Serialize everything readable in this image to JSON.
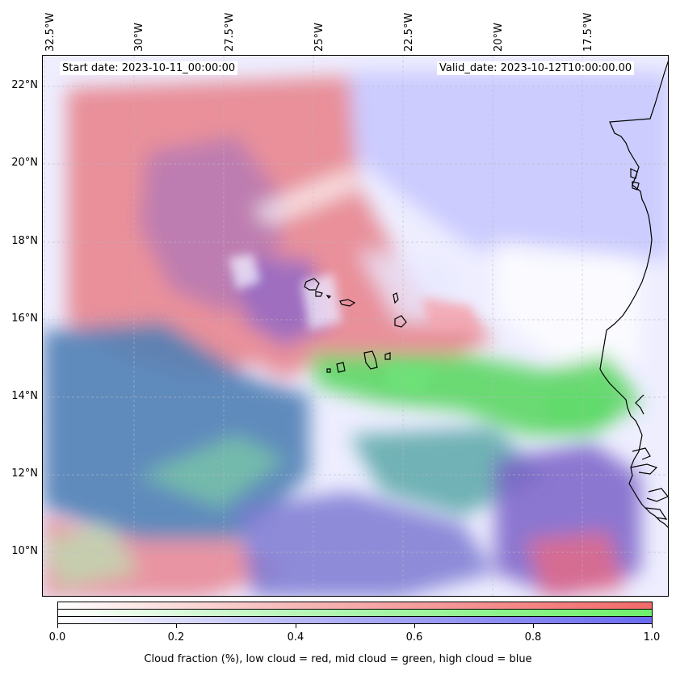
{
  "map": {
    "start_date": "Start date: 2023-10-11_00:00:00",
    "valid_date": "Valid_date: 2023-10-12T10:00:00.00",
    "longitude_labels": [
      "32.5°W",
      "30°W",
      "27.5°W",
      "25°W",
      "22.5°W",
      "20°W",
      "17.5°W"
    ],
    "latitude_labels": [
      "22°N",
      "20°N",
      "18°N",
      "16°N",
      "14°N",
      "12°N",
      "10°N"
    ],
    "gridlines": "dashed"
  },
  "colorbar": {
    "ticks": [
      "0.0",
      "0.2",
      "0.4",
      "0.6",
      "0.8",
      "1.0"
    ],
    "label": "Cloud fraction (%), low cloud = red, mid cloud = green, high cloud = blue",
    "colors": {
      "low_cloud": "#f26a6a",
      "mid_cloud": "#6ef06a",
      "high_cloud": "#6a6af2"
    }
  }
}
